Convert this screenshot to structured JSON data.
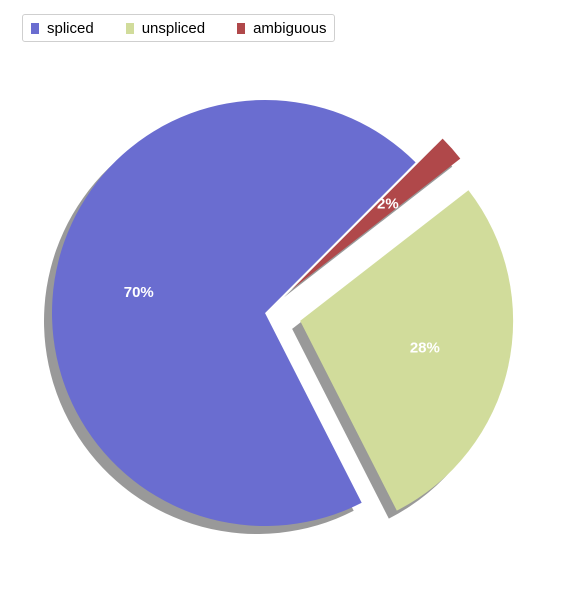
{
  "chart_data": {
    "type": "pie",
    "title": "",
    "legend_position": "top-left",
    "start_angle_deg": 45,
    "direction": "counterclockwise",
    "shadow": true,
    "slices": [
      {
        "label": "spliced",
        "value": 70,
        "value_label": "70%",
        "color": "#6a6dd0",
        "exploded": false
      },
      {
        "label": "unspliced",
        "value": 28,
        "value_label": "28%",
        "color": "#d1dc9b",
        "exploded": true
      },
      {
        "label": "ambiguous",
        "value": 2,
        "value_label": "2%",
        "color": "#b0484a",
        "exploded": true
      }
    ]
  }
}
